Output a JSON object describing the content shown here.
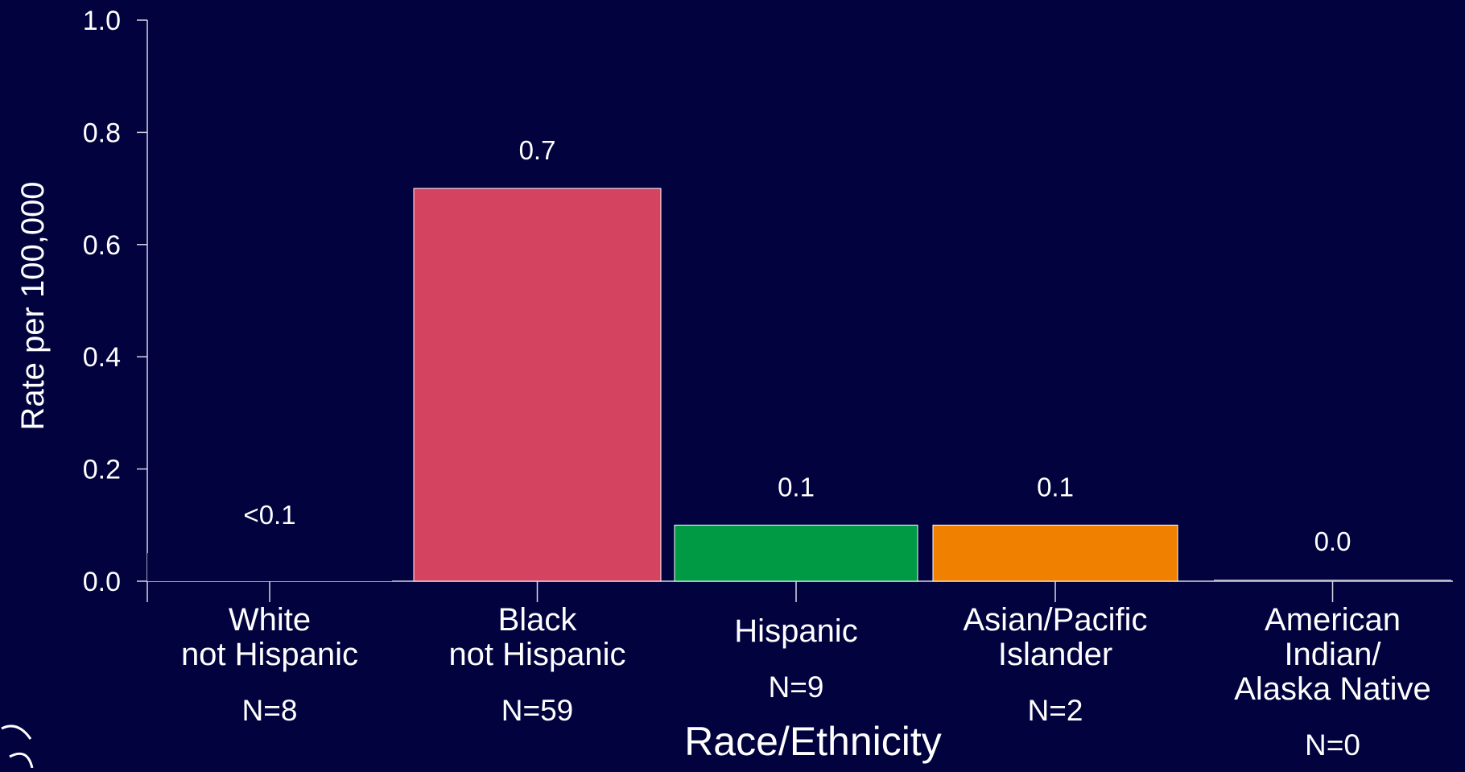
{
  "chart_data": {
    "type": "bar",
    "categories": [
      [
        "White",
        "not Hispanic"
      ],
      [
        "Black",
        "not Hispanic"
      ],
      [
        "Hispanic"
      ],
      [
        "Asian/Pacific",
        "Islander"
      ],
      [
        "American",
        "Indian/",
        "Alaska Native"
      ]
    ],
    "counts": [
      "N=8",
      "N=59",
      "N=9",
      "N=2",
      "N=0"
    ],
    "values": [
      0.05,
      0.7,
      0.1,
      0.1,
      0.0
    ],
    "data_labels": [
      "<0.1",
      "0.7",
      "0.1",
      "0.1",
      "0.0"
    ],
    "bar_colors": [
      "#02023f",
      "#d44460",
      "#009944",
      "#f08000",
      "#b8b8c8"
    ],
    "ylabel": "Rate per 100,000",
    "xlabel": "Race/Ethnicity",
    "yticks": [
      "0.0",
      "0.2",
      "0.4",
      "0.6",
      "0.8",
      "1.0"
    ],
    "ylim": [
      0,
      1.0
    ],
    "grid": false,
    "legend": "none"
  },
  "background_color": "#02023f",
  "logo_icon": "hhs-eagle-seal-icon"
}
